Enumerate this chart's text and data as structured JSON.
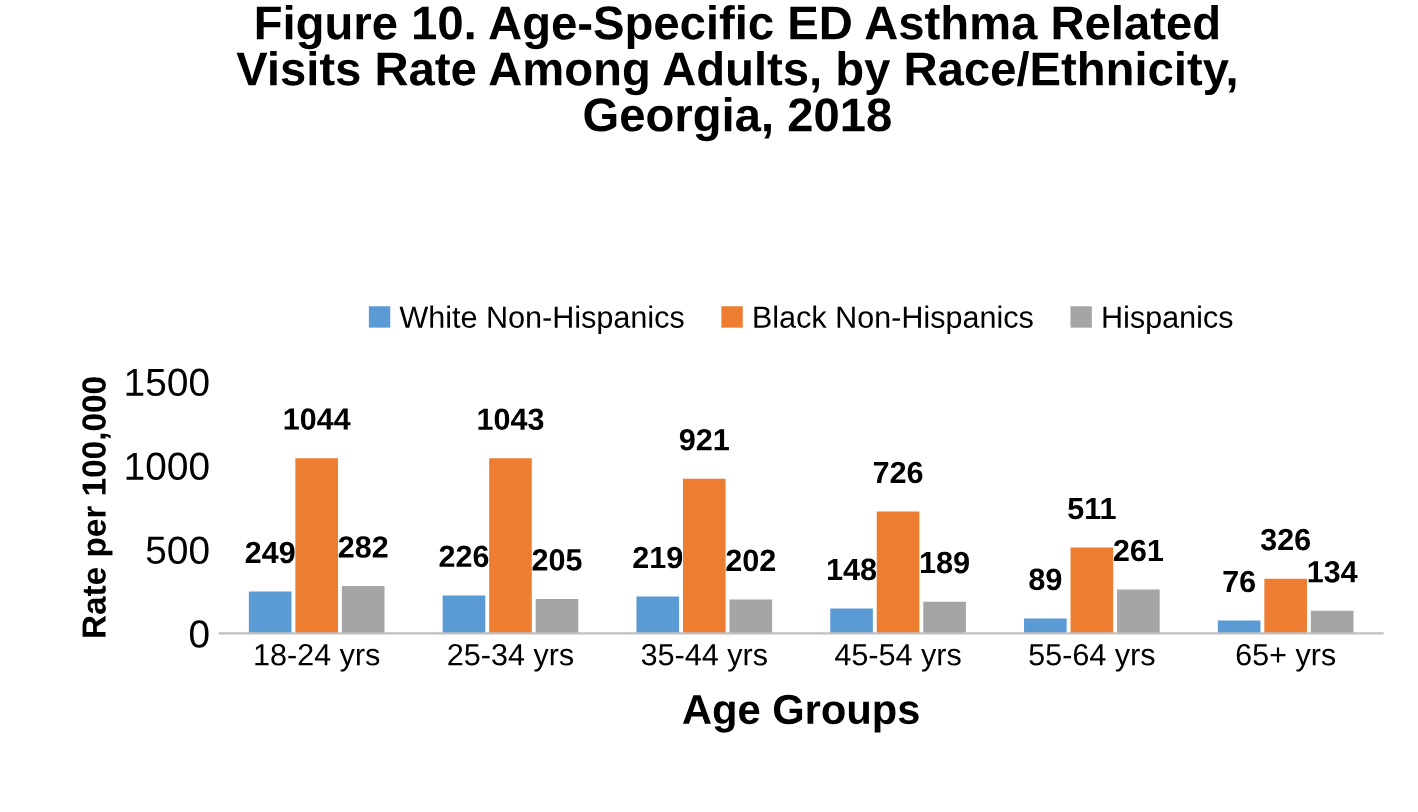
{
  "chart_data": {
    "type": "bar",
    "title": "Figure 10. Age-Specific ED Asthma Related\nVisits Rate Among Adults, by Race/Ethnicity,\nGeorgia, 2018",
    "xlabel": "Age Groups",
    "ylabel": "Rate per 100,000",
    "categories": [
      "18-24 yrs",
      "25-34 yrs",
      "35-44 yrs",
      "45-54 yrs",
      "55-64 yrs",
      "65+ yrs"
    ],
    "series": [
      {
        "name": "White Non-Hispanics",
        "color": "#5b9bd5",
        "values": [
          249,
          226,
          219,
          148,
          89,
          76
        ]
      },
      {
        "name": "Black Non-Hispanics",
        "color": "#ed7d31",
        "values": [
          1044,
          1043,
          921,
          726,
          511,
          326
        ]
      },
      {
        "name": "Hispanics",
        "color": "#a5a5a5",
        "values": [
          282,
          205,
          202,
          189,
          261,
          134
        ]
      }
    ],
    "ylim": [
      0,
      1500
    ],
    "yticks": [
      0,
      500,
      1000,
      1500
    ],
    "data_labels": true,
    "legend": "top",
    "grid": false
  }
}
